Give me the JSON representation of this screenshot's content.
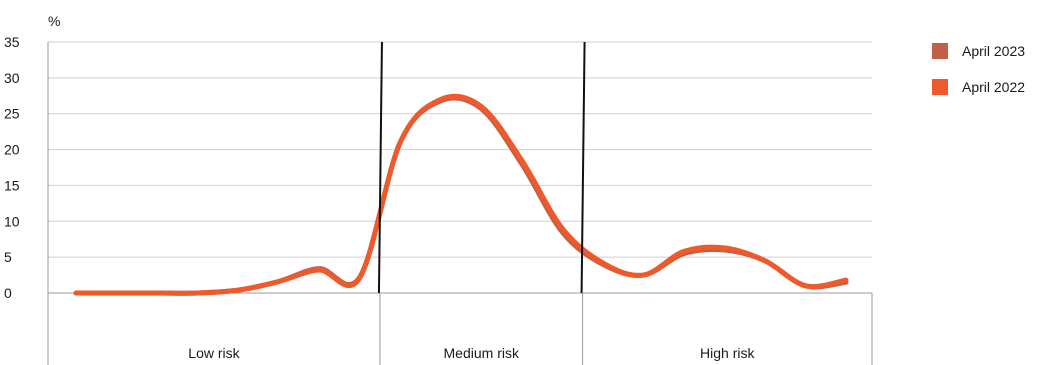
{
  "chart_data": {
    "type": "line",
    "ylabel": "%",
    "ylim": [
      0,
      35
    ],
    "yticks": [
      0,
      5,
      10,
      15,
      20,
      25,
      30,
      35
    ],
    "grid": true,
    "legend_position": "top-right",
    "categories": [
      "Low risk",
      "Medium risk",
      "High risk"
    ],
    "x": [
      1,
      2,
      3,
      4,
      5,
      6,
      7,
      8,
      9,
      10,
      11,
      12,
      13,
      14,
      15,
      16,
      17,
      18,
      19,
      20
    ],
    "series": [
      {
        "name": "April 2023",
        "color": "#c0604a",
        "values": [
          0,
          0,
          0,
          0,
          0.4,
          1.6,
          3.4,
          2.2,
          21,
          26.8,
          25.7,
          18,
          8.5,
          4,
          2.5,
          5.5,
          6,
          4.5,
          1,
          1.5
        ]
      },
      {
        "name": "April 2022",
        "color": "#ef5a2a",
        "values": [
          0,
          0,
          0,
          0,
          0.4,
          1.6,
          3.2,
          2.1,
          21,
          27,
          26,
          18.5,
          9,
          4.2,
          2.5,
          5.8,
          6.3,
          4.5,
          1,
          1.8
        ]
      }
    ],
    "dividers_after_point": [
      8.5,
      13.5
    ]
  }
}
